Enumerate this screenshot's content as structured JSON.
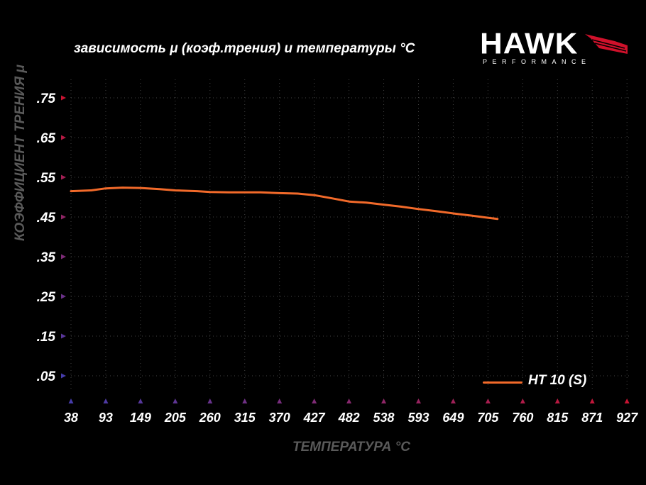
{
  "title": "зависимость μ (коэф.трения) и температуры °С",
  "logo": {
    "word": "HAWK",
    "sub": "PERFORMANCE"
  },
  "chart_data": {
    "type": "line",
    "title": "зависимость μ (коэф.трения) и температуры °С",
    "xlabel": "ТЕМПЕРАТУРА °С",
    "ylabel": "КОЭФФИЦИЕНТ ТРЕНИЯ μ",
    "x_ticks": [
      "38",
      "93",
      "149",
      "205",
      "260",
      "315",
      "370",
      "427",
      "482",
      "538",
      "593",
      "649",
      "705",
      "760",
      "815",
      "871",
      "927"
    ],
    "y_ticks": [
      ".75",
      ".65",
      ".55",
      ".45",
      ".35",
      ".25",
      ".15",
      ".05"
    ],
    "ylim": [
      0.0,
      0.77
    ],
    "grid": true,
    "legend_position": "bottom-right",
    "series": [
      {
        "name": "HT 10 (S)",
        "color": "#f26a2a",
        "x": [
          38,
          70,
          93,
          120,
          149,
          180,
          205,
          240,
          260,
          290,
          315,
          340,
          370,
          400,
          427,
          455,
          482,
          510,
          538,
          565,
          593,
          620,
          649,
          680,
          705,
          720
        ],
        "y": [
          0.515,
          0.517,
          0.522,
          0.524,
          0.523,
          0.52,
          0.517,
          0.515,
          0.513,
          0.512,
          0.512,
          0.512,
          0.51,
          0.509,
          0.505,
          0.497,
          0.489,
          0.486,
          0.481,
          0.476,
          0.47,
          0.465,
          0.459,
          0.453,
          0.448,
          0.445
        ]
      }
    ]
  }
}
